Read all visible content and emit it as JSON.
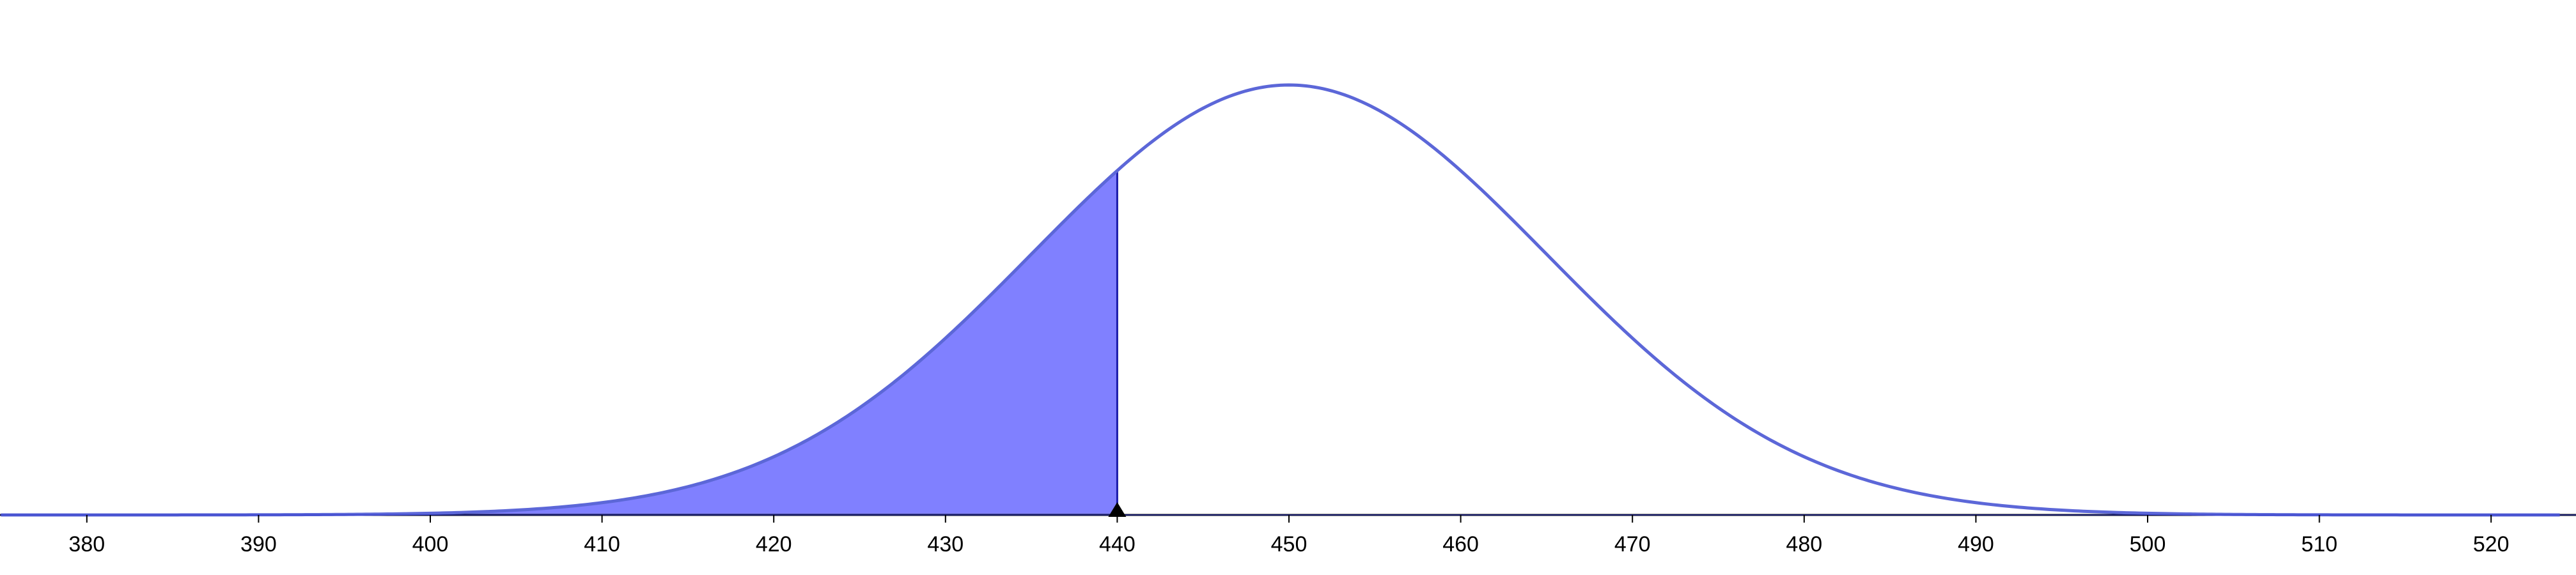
{
  "chart_data": {
    "type": "area",
    "distribution": "normal",
    "mean": 450,
    "std_dev": 15,
    "shaded_region": {
      "from": 375,
      "to": 440
    },
    "marker_x": 440,
    "xlim": [
      375,
      524
    ],
    "x_ticks": [
      380,
      390,
      400,
      410,
      420,
      430,
      440,
      450,
      460,
      470,
      480,
      490,
      500,
      510,
      520
    ],
    "x_tick_labels": [
      "380",
      "390",
      "400",
      "410",
      "420",
      "430",
      "440",
      "450",
      "460",
      "470",
      "480",
      "490",
      "500",
      "510",
      "520"
    ],
    "grid": false,
    "legend": "none",
    "title": "",
    "xlabel": "",
    "ylabel": ""
  },
  "colors": {
    "curve": "#5c67d8",
    "fill": "#8080ff",
    "fill_outline": "#1a1aaa",
    "axis": "#000000",
    "baseline": "#2b35c9",
    "marker": "#000000"
  }
}
